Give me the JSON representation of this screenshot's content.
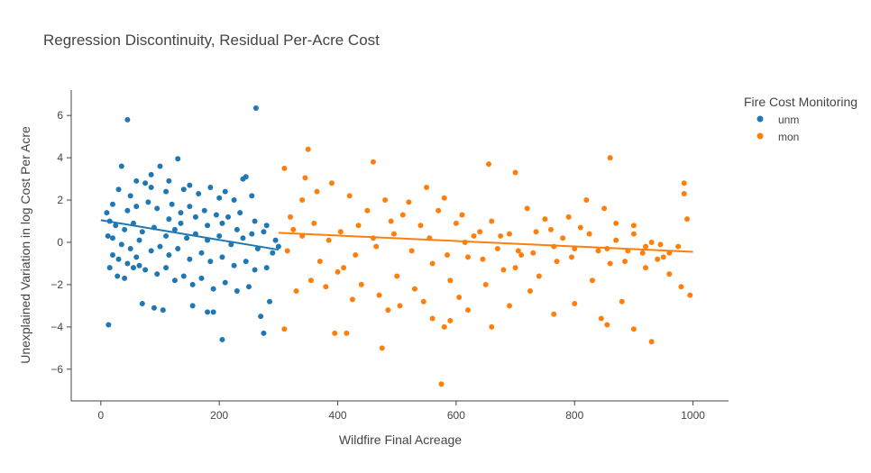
{
  "chart_data": {
    "type": "scatter",
    "title": "Regression Discontinuity, Residual Per-Acre Cost",
    "xlabel": "Wildfire Final Acreage",
    "ylabel": "Unexplained Variation in log Cost Per Acre",
    "xlim": [
      -50,
      1060
    ],
    "ylim": [
      -7.5,
      7.2
    ],
    "xticks": [
      0,
      200,
      400,
      600,
      800,
      1000
    ],
    "yticks": [
      -6,
      -4,
      -2,
      0,
      2,
      4,
      6
    ],
    "grid": false,
    "legend": {
      "title": "Fire Cost Monitoring",
      "placement": "top-right"
    },
    "series": [
      {
        "name": "unm",
        "color": "#1f77b4",
        "points": [
          [
            13,
            -3.9
          ],
          [
            45,
            5.8
          ],
          [
            262,
            6.35
          ],
          [
            130,
            3.95
          ],
          [
            100,
            3.6
          ],
          [
            35,
            3.6
          ],
          [
            245,
            3.1
          ],
          [
            240,
            3.0
          ],
          [
            205,
            -4.6
          ],
          [
            275,
            -4.3
          ],
          [
            70,
            -2.9
          ],
          [
            90,
            -3.1
          ],
          [
            105,
            -3.2
          ],
          [
            155,
            -3.0
          ],
          [
            180,
            -3.3
          ],
          [
            190,
            -3.3
          ],
          [
            15,
            -1.2
          ],
          [
            20,
            -0.6
          ],
          [
            28,
            -1.6
          ],
          [
            40,
            -1.7
          ],
          [
            55,
            -1.2
          ],
          [
            65,
            -1.1
          ],
          [
            270,
            -3.5
          ],
          [
            285,
            -2.8
          ],
          [
            30,
            2.5
          ],
          [
            50,
            2.2
          ],
          [
            75,
            2.8
          ],
          [
            85,
            2.6
          ],
          [
            110,
            2.4
          ],
          [
            140,
            2.5
          ],
          [
            165,
            2.3
          ],
          [
            200,
            2.1
          ],
          [
            225,
            2.0
          ],
          [
            255,
            2.2
          ],
          [
            20,
            1.8
          ],
          [
            45,
            1.5
          ],
          [
            60,
            1.7
          ],
          [
            80,
            1.9
          ],
          [
            95,
            1.6
          ],
          [
            120,
            1.8
          ],
          [
            135,
            1.4
          ],
          [
            150,
            1.7
          ],
          [
            175,
            1.5
          ],
          [
            195,
            1.3
          ],
          [
            215,
            1.2
          ],
          [
            235,
            1.4
          ],
          [
            260,
            1.0
          ],
          [
            280,
            0.8
          ],
          [
            15,
            1.0
          ],
          [
            25,
            0.8
          ],
          [
            40,
            0.6
          ],
          [
            55,
            0.9
          ],
          [
            70,
            0.5
          ],
          [
            90,
            0.7
          ],
          [
            110,
            0.3
          ],
          [
            125,
            0.6
          ],
          [
            145,
            0.2
          ],
          [
            160,
            0.4
          ],
          [
            180,
            0.1
          ],
          [
            200,
            0.3
          ],
          [
            220,
            -0.1
          ],
          [
            240,
            0.2
          ],
          [
            265,
            -0.3
          ],
          [
            290,
            -0.5
          ],
          [
            20,
            0.2
          ],
          [
            35,
            -0.1
          ],
          [
            50,
            -0.3
          ],
          [
            65,
            0.1
          ],
          [
            85,
            -0.4
          ],
          [
            100,
            -0.2
          ],
          [
            115,
            -0.6
          ],
          [
            130,
            -0.3
          ],
          [
            150,
            -0.8
          ],
          [
            170,
            -0.5
          ],
          [
            185,
            -0.9
          ],
          [
            205,
            -0.7
          ],
          [
            225,
            -1.1
          ],
          [
            245,
            -0.9
          ],
          [
            260,
            -1.3
          ],
          [
            280,
            -1.2
          ],
          [
            30,
            -0.8
          ],
          [
            45,
            -1.0
          ],
          [
            60,
            -0.7
          ],
          [
            75,
            -1.3
          ],
          [
            95,
            -1.5
          ],
          [
            110,
            -1.2
          ],
          [
            125,
            -1.8
          ],
          [
            140,
            -1.6
          ],
          [
            155,
            -2.0
          ],
          [
            170,
            -1.7
          ],
          [
            190,
            -2.2
          ],
          [
            210,
            -1.9
          ],
          [
            230,
            -2.3
          ],
          [
            250,
            -2.1
          ],
          [
            115,
            1.1
          ],
          [
            135,
            0.9
          ],
          [
            160,
            1.2
          ],
          [
            180,
            0.8
          ],
          [
            205,
            0.9
          ],
          [
            230,
            0.6
          ],
          [
            255,
            0.4
          ],
          [
            275,
            0.5
          ],
          [
            300,
            -0.2
          ],
          [
            295,
            0.1
          ],
          [
            85,
            3.2
          ],
          [
            60,
            2.9
          ],
          [
            115,
            2.9
          ],
          [
            150,
            2.7
          ],
          [
            185,
            2.6
          ],
          [
            210,
            2.4
          ],
          [
            10,
            1.4
          ],
          [
            12,
            0.3
          ]
        ],
        "fit": [
          [
            0,
            1.05
          ],
          [
            300,
            -0.35
          ]
        ]
      },
      {
        "name": "mon",
        "color": "#ff7f0e",
        "points": [
          [
            350,
            4.4
          ],
          [
            460,
            3.8
          ],
          [
            655,
            3.7
          ],
          [
            700,
            3.3
          ],
          [
            860,
            4.0
          ],
          [
            985,
            2.8
          ],
          [
            310,
            3.5
          ],
          [
            345,
            3.05
          ],
          [
            575,
            -6.7
          ],
          [
            475,
            -5.0
          ],
          [
            395,
            -4.3
          ],
          [
            415,
            -4.3
          ],
          [
            310,
            -4.1
          ],
          [
            930,
            -4.7
          ],
          [
            900,
            -4.1
          ],
          [
            765,
            -3.4
          ],
          [
            855,
            -3.9
          ],
          [
            845,
            -3.6
          ],
          [
            660,
            -4.0
          ],
          [
            580,
            -4.0
          ],
          [
            560,
            -3.6
          ],
          [
            590,
            -3.7
          ],
          [
            620,
            -3.2
          ],
          [
            690,
            -3.0
          ],
          [
            800,
            -2.9
          ],
          [
            880,
            -2.8
          ],
          [
            980,
            -2.1
          ],
          [
            995,
            -2.5
          ],
          [
            960,
            -1.5
          ],
          [
            940,
            -0.8
          ],
          [
            920,
            -0.2
          ],
          [
            900,
            0.4
          ],
          [
            870,
            0.9
          ],
          [
            850,
            1.6
          ],
          [
            820,
            2.0
          ],
          [
            790,
            1.2
          ],
          [
            760,
            0.6
          ],
          [
            730,
            -0.5
          ],
          [
            700,
            -1.2
          ],
          [
            670,
            -0.3
          ],
          [
            640,
            0.5
          ],
          [
            610,
            1.3
          ],
          [
            580,
            2.1
          ],
          [
            550,
            2.6
          ],
          [
            520,
            1.9
          ],
          [
            490,
            1.0
          ],
          [
            460,
            0.2
          ],
          [
            430,
            -0.6
          ],
          [
            400,
            -1.4
          ],
          [
            370,
            -0.9
          ],
          [
            340,
            0.3
          ],
          [
            320,
            1.2
          ],
          [
            315,
            -0.4
          ],
          [
            330,
            -2.3
          ],
          [
            355,
            -1.8
          ],
          [
            380,
            -2.1
          ],
          [
            410,
            -1.2
          ],
          [
            440,
            -2.0
          ],
          [
            470,
            -2.5
          ],
          [
            500,
            -1.6
          ],
          [
            530,
            -2.2
          ],
          [
            560,
            -1.0
          ],
          [
            590,
            -1.8
          ],
          [
            620,
            -0.7
          ],
          [
            650,
            -2.0
          ],
          [
            680,
            -1.3
          ],
          [
            710,
            -0.6
          ],
          [
            740,
            -1.6
          ],
          [
            770,
            -0.9
          ],
          [
            800,
            -0.3
          ],
          [
            830,
            -1.8
          ],
          [
            860,
            -1.0
          ],
          [
            890,
            -0.4
          ],
          [
            920,
            -1.2
          ],
          [
            950,
            -0.7
          ],
          [
            975,
            -0.2
          ],
          [
            340,
            2.0
          ],
          [
            365,
            2.4
          ],
          [
            390,
            2.8
          ],
          [
            420,
            2.2
          ],
          [
            450,
            1.5
          ],
          [
            480,
            2.0
          ],
          [
            510,
            1.3
          ],
          [
            540,
            0.8
          ],
          [
            570,
            1.5
          ],
          [
            600,
            0.9
          ],
          [
            630,
            0.3
          ],
          [
            660,
            1.0
          ],
          [
            690,
            0.4
          ],
          [
            720,
            1.6
          ],
          [
            750,
            1.1
          ],
          [
            780,
            0.2
          ],
          [
            810,
            0.7
          ],
          [
            840,
            -0.4
          ],
          [
            870,
            0.1
          ],
          [
            900,
            0.8
          ],
          [
            930,
            0.0
          ],
          [
            960,
            -0.5
          ],
          [
            990,
            1.1
          ],
          [
            325,
            0.6
          ],
          [
            360,
            0.9
          ],
          [
            385,
            0.1
          ],
          [
            405,
            0.5
          ],
          [
            435,
            0.8
          ],
          [
            465,
            -0.2
          ],
          [
            495,
            0.4
          ],
          [
            525,
            -0.4
          ],
          [
            555,
            0.2
          ],
          [
            585,
            -0.6
          ],
          [
            615,
            0.0
          ],
          [
            645,
            -0.8
          ],
          [
            675,
            0.3
          ],
          [
            705,
            -0.4
          ],
          [
            735,
            0.5
          ],
          [
            765,
            -0.2
          ],
          [
            795,
            -0.7
          ],
          [
            825,
            0.4
          ],
          [
            855,
            -0.3
          ],
          [
            885,
            -0.9
          ],
          [
            915,
            -0.5
          ],
          [
            945,
            -0.1
          ],
          [
            985,
            2.3
          ],
          [
            505,
            -3.0
          ],
          [
            545,
            -2.8
          ],
          [
            605,
            -2.6
          ],
          [
            725,
            -2.3
          ],
          [
            425,
            -2.7
          ],
          [
            485,
            -3.2
          ]
        ],
        "fit": [
          [
            300,
            0.45
          ],
          [
            1000,
            -0.45
          ]
        ]
      }
    ]
  }
}
